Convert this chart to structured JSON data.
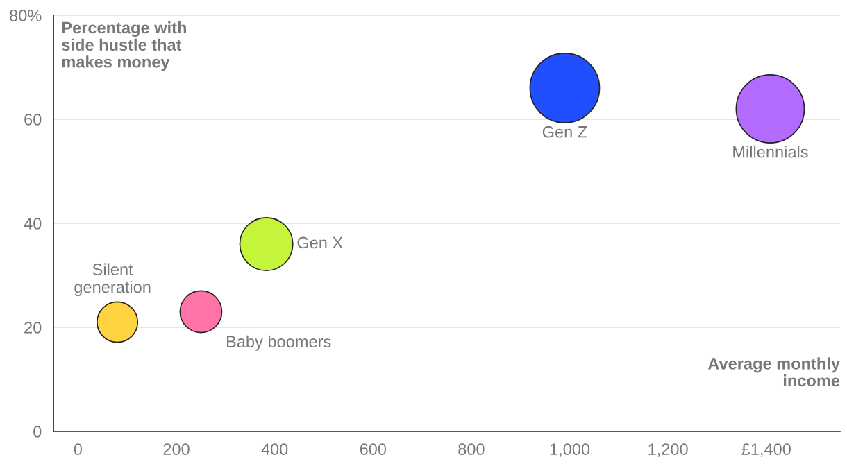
{
  "chart_data": {
    "type": "bubble",
    "xlabel": "Average monthly\nincome",
    "ylabel": "Percentage with\nside hustle that\nmakes money",
    "series": [
      {
        "name": "Silent generation",
        "color": "#ffd23f",
        "x": [
          80
        ],
        "values": [
          21
        ],
        "sizes": [
          0.34
        ]
      },
      {
        "name": "Baby boomers",
        "color": "#ff73a8",
        "x": [
          250
        ],
        "values": [
          23
        ],
        "sizes": [
          0.36
        ]
      },
      {
        "name": "Gen X",
        "color": "#c5f53b",
        "x": [
          383
        ],
        "values": [
          36
        ],
        "sizes": [
          0.58
        ]
      },
      {
        "name": "Gen Z",
        "color": "#1f4fff",
        "x": [
          990
        ],
        "values": [
          66
        ],
        "sizes": [
          1
        ]
      },
      {
        "name": "Millennials",
        "color": "#b36bff",
        "x": [
          1408
        ],
        "values": [
          62
        ],
        "sizes": [
          0.96
        ]
      }
    ],
    "xlim": [
      -50,
      1550
    ],
    "ylim": [
      0,
      80
    ],
    "xticks": [
      0,
      200,
      400,
      600,
      800,
      {
        "value": 1000,
        "label": "1,000"
      },
      {
        "value": 1200,
        "label": "1,200"
      },
      {
        "value": 1400,
        "label": "£1,400"
      }
    ],
    "yticks": [
      0,
      20,
      40,
      60,
      {
        "value": 80,
        "label": "80%"
      }
    ],
    "grid": "y",
    "legend": false
  }
}
